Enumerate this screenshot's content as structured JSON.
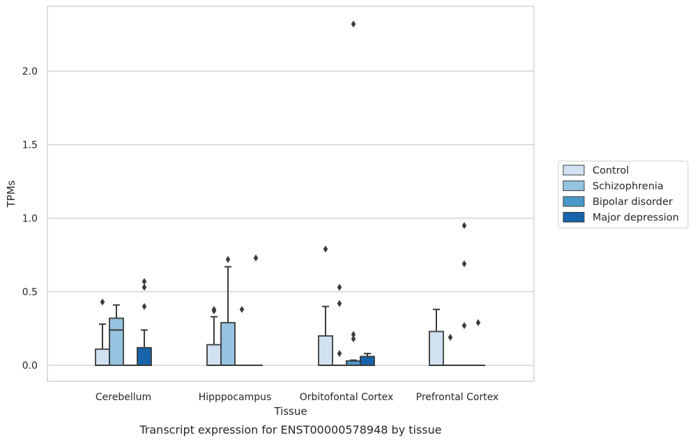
{
  "chart_data": {
    "type": "box",
    "xlabel": "Tissue",
    "ylabel": "TPMs",
    "caption": "Transcript expression for ENST00000578948 by tissue",
    "categories": [
      "Cerebellum",
      "Hipppocampus",
      "Orbitofontal Cortex",
      "Prefrontal Cortex"
    ],
    "ylim": [
      -0.11,
      2.44
    ],
    "yticks": [
      0.0,
      0.5,
      1.0,
      1.5,
      2.0
    ],
    "ytick_labels": [
      "0.0",
      "0.5",
      "1.0",
      "1.5",
      "2.0"
    ],
    "grid": "horizontal",
    "legend_position": "right",
    "series": [
      {
        "name": "Control",
        "color": "#d0e1f2",
        "boxes": [
          {
            "q1": 0,
            "median": 0,
            "q3": 0.11,
            "whisker_low": 0,
            "whisker_high": 0.28,
            "outliers": [
              0.43
            ]
          },
          {
            "q1": 0,
            "median": 0,
            "q3": 0.14,
            "whisker_low": 0,
            "whisker_high": 0.33,
            "outliers": [
              0.37,
              0.38
            ]
          },
          {
            "q1": 0,
            "median": 0,
            "q3": 0.2,
            "whisker_low": 0,
            "whisker_high": 0.4,
            "outliers": [
              0.79
            ]
          },
          {
            "q1": 0,
            "median": 0,
            "q3": 0.23,
            "whisker_low": 0,
            "whisker_high": 0.38,
            "outliers": []
          }
        ]
      },
      {
        "name": "Schizophrenia",
        "color": "#94c4df",
        "boxes": [
          {
            "q1": 0,
            "median": 0.24,
            "q3": 0.32,
            "whisker_low": 0,
            "whisker_high": 0.41,
            "outliers": []
          },
          {
            "q1": 0,
            "median": 0,
            "q3": 0.29,
            "whisker_low": 0,
            "whisker_high": 0.67,
            "outliers": [
              0.72
            ]
          },
          {
            "q1": 0,
            "median": 0,
            "q3": 0,
            "whisker_low": 0,
            "whisker_high": 0,
            "outliers": [
              0.08,
              0.42,
              0.53
            ]
          },
          {
            "q1": 0,
            "median": 0,
            "q3": 0,
            "whisker_low": 0,
            "whisker_high": 0,
            "outliers": [
              0.19
            ]
          }
        ]
      },
      {
        "name": "Bipolar disorder",
        "color": "#4a98c9",
        "boxes": [
          {
            "q1": 0,
            "median": 0,
            "q3": 0,
            "whisker_low": 0,
            "whisker_high": 0,
            "outliers": []
          },
          {
            "q1": 0,
            "median": 0,
            "q3": 0,
            "whisker_low": 0,
            "whisker_high": 0,
            "outliers": [
              0.38
            ]
          },
          {
            "q1": 0,
            "median": 0,
            "q3": 0.03,
            "whisker_low": 0,
            "whisker_high": 0.035,
            "outliers": [
              0.18,
              0.21,
              2.32
            ]
          },
          {
            "q1": 0,
            "median": 0,
            "q3": 0,
            "whisker_low": 0,
            "whisker_high": 0,
            "outliers": [
              0.27,
              0.69,
              0.95
            ]
          }
        ]
      },
      {
        "name": "Major depression",
        "color": "#1764ab",
        "boxes": [
          {
            "q1": 0,
            "median": 0,
            "q3": 0.12,
            "whisker_low": 0,
            "whisker_high": 0.24,
            "outliers": [
              0.4,
              0.53,
              0.57
            ]
          },
          {
            "q1": 0,
            "median": 0,
            "q3": 0,
            "whisker_low": 0,
            "whisker_high": 0,
            "outliers": [
              0.73
            ]
          },
          {
            "q1": 0,
            "median": 0,
            "q3": 0.06,
            "whisker_low": 0,
            "whisker_high": 0.08,
            "outliers": []
          },
          {
            "q1": 0,
            "median": 0,
            "q3": 0,
            "whisker_low": 0,
            "whisker_high": 0,
            "outliers": [
              0.29
            ]
          }
        ]
      }
    ]
  }
}
